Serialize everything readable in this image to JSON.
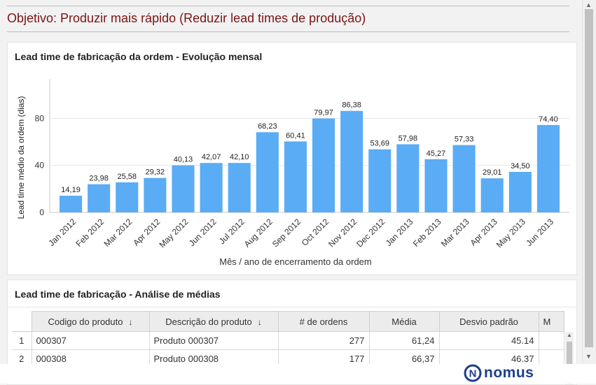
{
  "objective": "Objetivo: Produzir mais rápido (Reduzir lead times de produção)",
  "chart_panel": {
    "title": "Lead time de fabricação da ordem - Evolução mensal"
  },
  "chart_data": {
    "type": "bar",
    "categories": [
      "Jan 2012",
      "Feb 2012",
      "Mar 2012",
      "Apr 2012",
      "May 2012",
      "Jun 2012",
      "Jul 2012",
      "Aug 2012",
      "Sep 2012",
      "Oct 2012",
      "Nov 2012",
      "Dec 2012",
      "Jan 2013",
      "Feb 2013",
      "Mar 2013",
      "Apr 2013",
      "May 2013",
      "Jun 2013"
    ],
    "values": [
      14.19,
      23.98,
      25.58,
      29.32,
      40.13,
      42.07,
      42.1,
      68.23,
      60.41,
      79.97,
      86.38,
      53.69,
      57.98,
      45.27,
      57.33,
      29.01,
      34.5,
      74.4
    ],
    "value_labels": [
      "14,19",
      "23,98",
      "25,58",
      "29,32",
      "40,13",
      "42,07",
      "42,10",
      "68,23",
      "60,41",
      "79,97",
      "86,38",
      "53,69",
      "57,98",
      "45,27",
      "57,33",
      "29,01",
      "34,50",
      "74,40"
    ],
    "xlabel": "Mês / ano de encerramento da ordem",
    "ylabel": "Lead time médio da ordem (dias)",
    "yticks": [
      0,
      40,
      80
    ],
    "ylim": [
      0,
      110
    ],
    "grid": true,
    "bar_color": "#5aacf5"
  },
  "table_panel": {
    "title": "Lead time de fabricação - Análise de médias",
    "columns": [
      "Codigo do produto",
      "Descrição do produto",
      "# de ordens",
      "Média",
      "Desvio padrão",
      "M"
    ],
    "rows": [
      {
        "idx": "1",
        "codigo": "000307",
        "descricao": "Produto 000307",
        "ordens": "277",
        "media": "61,24",
        "desvio": "45.14"
      },
      {
        "idx": "2",
        "codigo": "000308",
        "descricao": "Produto 000308",
        "ordens": "177",
        "media": "66,37",
        "desvio": "46.37"
      }
    ]
  },
  "footer": {
    "logo_text": "nomus",
    "logo_letter": "N",
    "logo_color": "#1d3f8a"
  }
}
